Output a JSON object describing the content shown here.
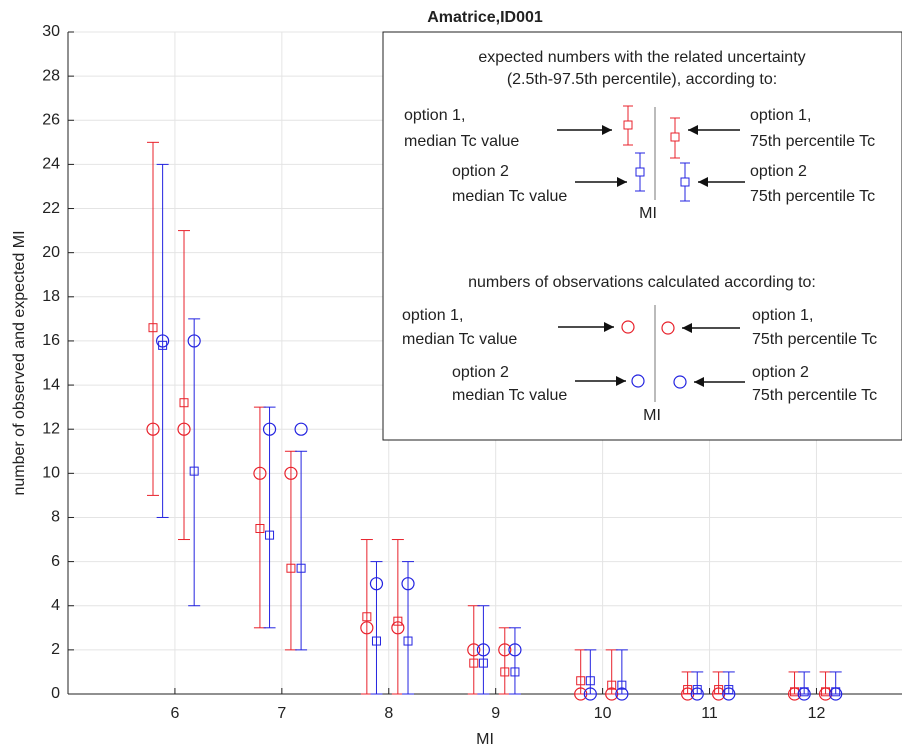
{
  "chart_data": {
    "type": "errorbar",
    "title": "Amatrice,ID001",
    "xlabel": "MI",
    "ylabel": "number of observed and expected MI",
    "x": [
      6,
      7,
      8,
      9,
      10,
      11,
      12
    ],
    "xlim": [
      5,
      12.8
    ],
    "xticks": [
      6,
      7,
      8,
      9,
      10,
      11,
      12
    ],
    "ylim": [
      0,
      30
    ],
    "yticks": [
      0,
      2,
      4,
      6,
      8,
      10,
      12,
      14,
      16,
      18,
      20,
      22,
      24,
      26,
      28,
      30
    ],
    "grid": true,
    "series": [
      {
        "name": [
          "option 1,",
          "median Tc value"
        ],
        "color": "#e8212b",
        "expected": [
          16.6,
          7.5,
          3.5,
          1.4,
          0.6,
          0.2,
          0.1
        ],
        "lower": [
          9,
          3,
          0,
          0,
          0,
          0,
          0
        ],
        "upper": [
          25,
          13,
          7,
          4,
          2,
          1,
          1
        ],
        "observed": [
          12,
          10,
          3,
          2,
          0,
          0,
          0
        ]
      },
      {
        "name": [
          "option 2",
          "median Tc value"
        ],
        "color": "#2323e0",
        "expected": [
          15.8,
          7.2,
          2.4,
          1.4,
          0.6,
          0.2,
          0.1
        ],
        "lower": [
          8,
          3,
          0,
          0,
          0,
          0,
          0
        ],
        "upper": [
          24,
          13,
          6,
          4,
          2,
          1,
          1
        ],
        "observed": [
          16,
          12,
          5,
          2,
          0,
          0,
          0
        ]
      },
      {
        "name": [
          "option 1,",
          "75th percentile Tc"
        ],
        "color": "#e8212b",
        "expected": [
          13.2,
          5.7,
          3.3,
          1.0,
          0.4,
          0.2,
          0.1
        ],
        "lower": [
          7,
          2,
          0,
          0,
          0,
          0,
          0
        ],
        "upper": [
          21,
          11,
          7,
          3,
          2,
          1,
          1
        ],
        "observed": [
          12,
          10,
          3,
          2,
          0,
          0,
          0
        ]
      },
      {
        "name": [
          "option 2",
          "75th percentile Tc"
        ],
        "color": "#2323e0",
        "expected": [
          10.1,
          5.7,
          2.4,
          1.0,
          0.4,
          0.2,
          0.1
        ],
        "lower": [
          4,
          2,
          0,
          0,
          0,
          0,
          0
        ],
        "upper": [
          17,
          11,
          6,
          3,
          2,
          1,
          1
        ],
        "observed": [
          16,
          12,
          5,
          2,
          0,
          0,
          0
        ]
      }
    ],
    "legend": {
      "expected_title": [
        "expected numbers with the related uncertainty",
        "(2.5th-97.5th percentile), according to:"
      ],
      "observed_title": "numbers of observations calculated according to:",
      "center_label": "MI"
    }
  }
}
